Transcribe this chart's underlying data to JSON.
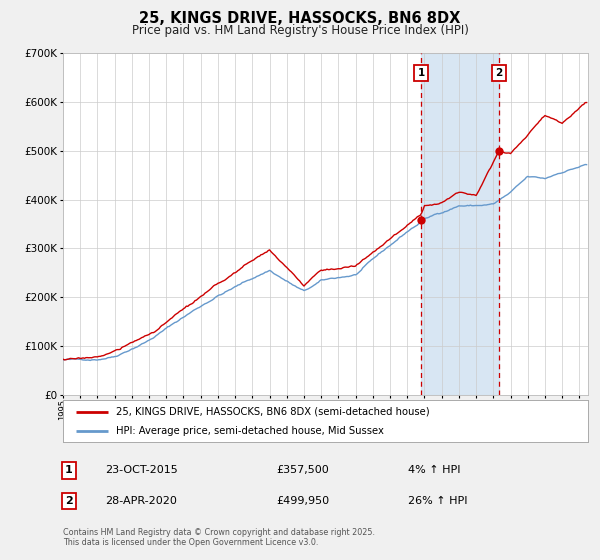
{
  "title": "25, KINGS DRIVE, HASSOCKS, BN6 8DX",
  "subtitle": "Price paid vs. HM Land Registry's House Price Index (HPI)",
  "hpi_label": "HPI: Average price, semi-detached house, Mid Sussex",
  "property_label": "25, KINGS DRIVE, HASSOCKS, BN6 8DX (semi-detached house)",
  "footnote_line1": "Contains HM Land Registry data © Crown copyright and database right 2025.",
  "footnote_line2": "This data is licensed under the Open Government Licence v3.0.",
  "sale1_date": "23-OCT-2015",
  "sale1_price": "£357,500",
  "sale1_hpi": "4% ↑ HPI",
  "sale2_date": "28-APR-2020",
  "sale2_price": "£499,950",
  "sale2_hpi": "26% ↑ HPI",
  "sale1_year": 2015.8,
  "sale2_year": 2020.33,
  "sale1_value": 357500,
  "sale2_value": 499950,
  "background_color": "#f0f0f0",
  "plot_bg_color": "#ffffff",
  "shade_color": "#cfe0f0",
  "red_line_color": "#cc0000",
  "blue_line_color": "#6699cc",
  "grid_color": "#cccccc",
  "dashed_line_color": "#cc0000",
  "ylim": [
    0,
    700000
  ],
  "xlim_start": 1995,
  "xlim_end": 2025.5,
  "hpi_key_years": [
    1995,
    1996,
    1997,
    1998,
    2000,
    2002,
    2004,
    2007,
    2009,
    2010,
    2012,
    2015,
    2016,
    2017,
    2018,
    2019,
    2020,
    2021,
    2022,
    2023,
    2024,
    2025.3
  ],
  "hpi_key_vals": [
    72000,
    71000,
    74000,
    82000,
    118000,
    165000,
    210000,
    262000,
    218000,
    238000,
    250000,
    335000,
    360000,
    375000,
    390000,
    390000,
    393000,
    415000,
    445000,
    440000,
    455000,
    470000
  ],
  "prop_key_years": [
    1995,
    1996,
    1997,
    1998,
    2000,
    2002,
    2004,
    2007,
    2009,
    2010,
    2012,
    2015.8,
    2016,
    2017,
    2018,
    2019,
    2020.33,
    2021,
    2023,
    2024,
    2025.3
  ],
  "prop_key_vals": [
    73000,
    72000,
    77000,
    88000,
    122000,
    172000,
    218000,
    290000,
    213000,
    247000,
    255000,
    357500,
    375000,
    385000,
    405000,
    405000,
    499950,
    492000,
    572000,
    555000,
    600000
  ]
}
